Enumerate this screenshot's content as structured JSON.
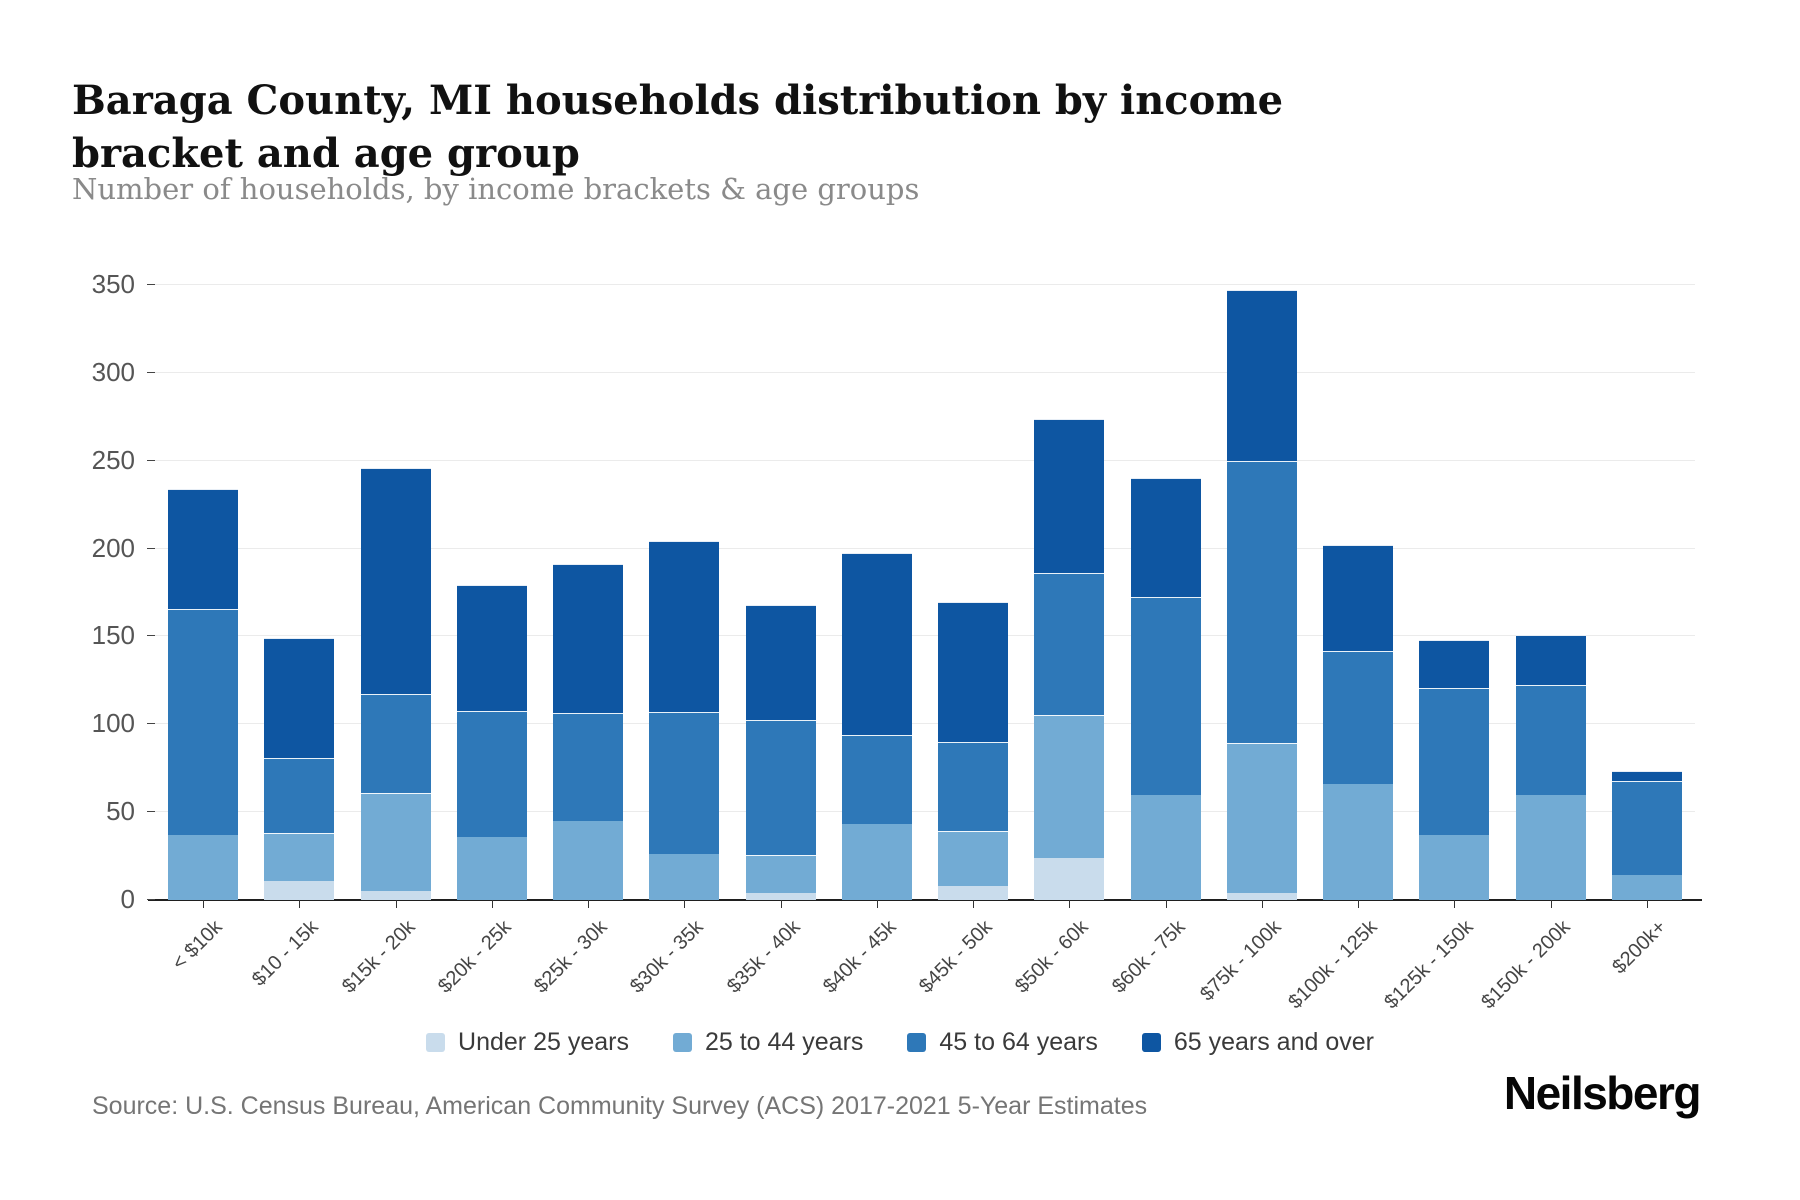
{
  "title": "Baraga County, MI households distribution by income bracket and age group",
  "subtitle": "Number of households, by income brackets & age groups",
  "source": "Source: U.S. Census Bureau, American Community Survey (ACS) 2017-2021 5-Year Estimates",
  "brand": "Neilsberg",
  "colors": {
    "under_25": "#c9dcec",
    "age_25_44": "#72abd4",
    "age_45_64": "#2e78b8",
    "age_65_over": "#0e56a2",
    "gridline": "#ebebeb",
    "axis": "#1f1f1f",
    "title_text": "#111111",
    "subtitle_text": "#8a8a8a",
    "tick_text": "#555555"
  },
  "legend": [
    {
      "label": "Under 25 years",
      "color": "#c9dcec"
    },
    {
      "label": "25 to 44 years",
      "color": "#72abd4"
    },
    {
      "label": "45 to 64 years",
      "color": "#2e78b8"
    },
    {
      "label": "65 years and over",
      "color": "#0e56a2"
    }
  ],
  "chart_data": {
    "type": "bar",
    "stacked": true,
    "title": "Baraga County, MI households distribution by income bracket and age group",
    "xlabel": "",
    "ylabel": "Number of households",
    "ylim": [
      0,
      350
    ],
    "ytick_step": 50,
    "y_ticks": [
      0,
      50,
      100,
      150,
      200,
      250,
      300,
      350
    ],
    "grid": true,
    "legend_position": "bottom",
    "categories": [
      "< $10k",
      "$10 - 15k",
      "$15k - 20k",
      "$20k - 25k",
      "$25k - 30k",
      "$30k - 35k",
      "$35k - 40k",
      "$40k - 45k",
      "$45k - 50k",
      "$50k - 60k",
      "$60k - 75k",
      "$75k - 100k",
      "$100k - 125k",
      "$125k - 150k",
      "$150k - 200k",
      "$200k+"
    ],
    "series": [
      {
        "name": "Under 25 years",
        "color": "#c9dcec",
        "values": [
          0,
          11,
          5,
          0,
          0,
          0,
          4,
          0,
          8,
          24,
          0,
          4,
          0,
          0,
          0,
          0
        ]
      },
      {
        "name": "25 to 44 years",
        "color": "#72abd4",
        "values": [
          37,
          27,
          55,
          36,
          45,
          26,
          21,
          43,
          31,
          81,
          60,
          85,
          66,
          37,
          60,
          14
        ]
      },
      {
        "name": "45 to 64 years",
        "color": "#2e78b8",
        "values": [
          128,
          42,
          56,
          71,
          61,
          80,
          76,
          50,
          50,
          80,
          112,
          160,
          75,
          83,
          62,
          53
        ]
      },
      {
        "name": "65 years and over",
        "color": "#0e56a2",
        "values": [
          68,
          68,
          128,
          71,
          84,
          97,
          65,
          103,
          79,
          87,
          67,
          97,
          60,
          27,
          28,
          5
        ]
      }
    ],
    "totals": [
      233,
      148,
      244,
      178,
      190,
      203,
      166,
      196,
      168,
      272,
      239,
      346,
      201,
      147,
      150,
      72
    ]
  }
}
